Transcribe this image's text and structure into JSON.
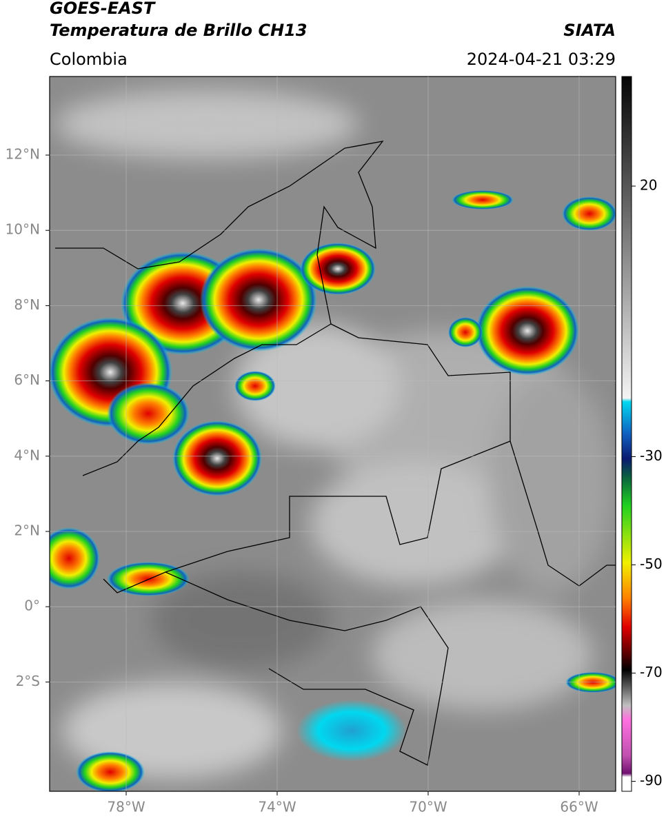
{
  "header": {
    "title_line1": "GOES-EAST",
    "title_line2": "Temperatura de Brillo CH13",
    "source": "SIATA",
    "region": "Colombia",
    "datetime": "2024-04-21 03:29"
  },
  "map": {
    "lat_labels": [
      "12°N",
      "10°N",
      "8°N",
      "6°N",
      "4°N",
      "2°N",
      "0°",
      "2°S"
    ],
    "lon_labels": [
      "78°W",
      "74°W",
      "70°W",
      "66°W"
    ]
  },
  "colorbar": {
    "ticks": [
      20,
      -30,
      -50,
      -70,
      -90
    ]
  }
}
